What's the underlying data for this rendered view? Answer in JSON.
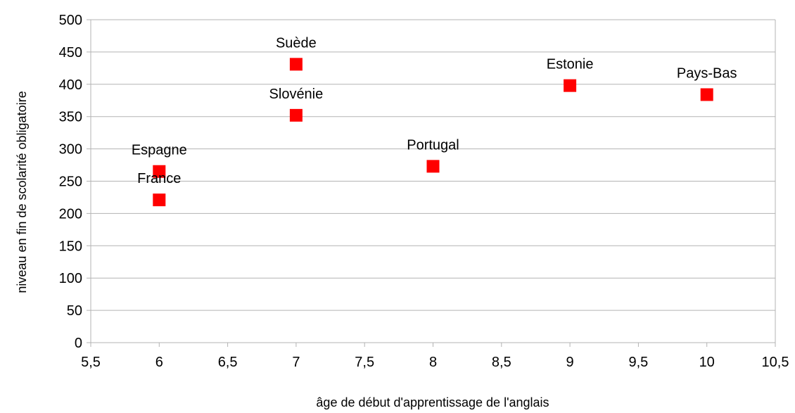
{
  "chart_data": {
    "type": "scatter",
    "xlabel": "âge de début d'apprentissage de l'anglais",
    "ylabel": "niveau en fin de scolarité obligatoire",
    "xlim": [
      5.5,
      10.5
    ],
    "ylim": [
      0,
      500
    ],
    "xticks": [
      "5,5",
      "6",
      "6,5",
      "7",
      "7,5",
      "8",
      "8,5",
      "9",
      "9,5",
      "10",
      "10,5"
    ],
    "yticks": [
      "0",
      "50",
      "100",
      "150",
      "200",
      "250",
      "300",
      "350",
      "400",
      "450",
      "500"
    ],
    "grid": "horizontal",
    "marker_color": "#ff0000",
    "marker_shape": "square",
    "points": [
      {
        "label": "Espagne",
        "x": 6,
        "y": 265
      },
      {
        "label": "France",
        "x": 6,
        "y": 221
      },
      {
        "label": "Suède",
        "x": 7,
        "y": 431
      },
      {
        "label": "Slovénie",
        "x": 7,
        "y": 352
      },
      {
        "label": "Portugal",
        "x": 8,
        "y": 273
      },
      {
        "label": "Estonie",
        "x": 9,
        "y": 398
      },
      {
        "label": "Pays-Bas",
        "x": 10,
        "y": 384
      }
    ]
  }
}
